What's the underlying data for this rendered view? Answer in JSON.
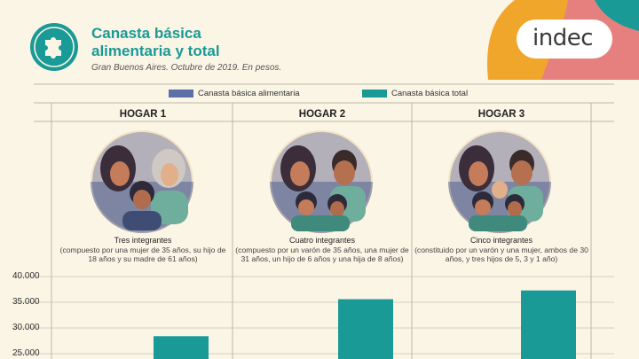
{
  "header": {
    "title_line1": "Canasta básica",
    "title_line2": "alimentaria y total",
    "subtitle": "Gran Buenos Aires. Octubre de 2019. En pesos.",
    "brand": "indec"
  },
  "colors": {
    "teal": "#1a9a96",
    "slate_blue": "#5b6fa8",
    "orange": "#f0a62a",
    "pink": "#e6807f",
    "background": "#fbf5e6"
  },
  "icons": {
    "logo": "puzzle-piece-icon"
  },
  "households": [
    {
      "name": "HOGAR 1",
      "members": "Tres integrantes",
      "description": "(compuesto por una mujer de 35 años, su hijo de 18 años y su madre de 61 años)"
    },
    {
      "name": "HOGAR 2",
      "members": "Cuatro integrantes",
      "description": "(compuesto por un varón de 35 años, una mujer de 31 años, un hijo de 6 años y una hija de 8 años)"
    },
    {
      "name": "HOGAR 3",
      "members": "Cinco integrantes",
      "description": "(constituido por un varón y una mujer, ambos de 30 años, y tres hijos de 5, 3 y 1 año)"
    }
  ],
  "chart_data": {
    "type": "bar",
    "categories": [
      "HOGAR 1",
      "HOGAR 2",
      "HOGAR 3"
    ],
    "series": [
      {
        "name": "Canasta básica alimentaria",
        "color": "#5b6fa8",
        "values": [
          null,
          null,
          null
        ]
      },
      {
        "name": "Canasta básica total",
        "color": "#1a9a96",
        "values": [
          28400,
          35600,
          37300
        ]
      }
    ],
    "yticks": [
      "40.000",
      "35.000",
      "30.000",
      "25.000"
    ],
    "ytick_values": [
      40000,
      35000,
      30000,
      25000
    ],
    "ylim": [
      25000,
      40000
    ],
    "legend_position": "top"
  }
}
